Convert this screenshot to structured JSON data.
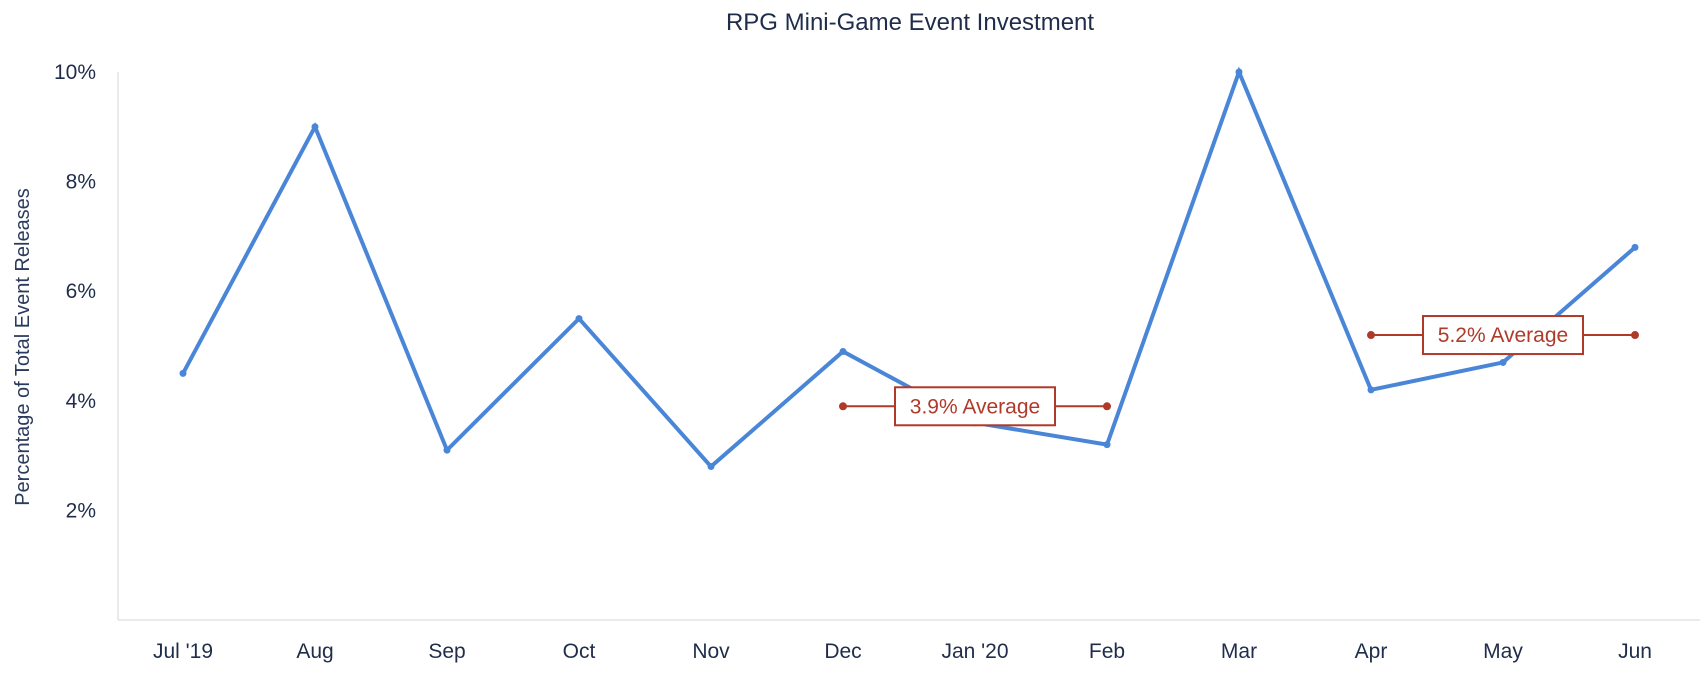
{
  "chart_data": {
    "type": "line",
    "title": "RPG Mini-Game Event Investment",
    "xlabel": "",
    "ylabel": "Percentage of Total Event Releases",
    "categories": [
      "Jul '19",
      "Aug",
      "Sep",
      "Oct",
      "Nov",
      "Dec",
      "Jan '20",
      "Feb",
      "Mar",
      "Apr",
      "May",
      "Jun"
    ],
    "series": [
      {
        "values": [
          4.5,
          9.0,
          3.1,
          5.5,
          2.8,
          4.9,
          3.6,
          3.2,
          10.0,
          4.2,
          4.7,
          6.8
        ]
      }
    ],
    "ylim": [
      0,
      10
    ],
    "yticks": [
      2,
      4,
      6,
      8,
      10
    ],
    "ytick_labels": [
      "2%",
      "4%",
      "6%",
      "8%",
      "10%"
    ],
    "grid": false,
    "annotations": [
      {
        "label": "3.9% Average",
        "value": 3.9,
        "from": "Dec",
        "to": "Feb"
      },
      {
        "label": "5.2% Average",
        "value": 5.2,
        "from": "Apr",
        "to": "Jun"
      }
    ],
    "colors": {
      "series": "#4a86d8",
      "annotation": "#b03a2a",
      "text": "#1f2d4a"
    }
  }
}
